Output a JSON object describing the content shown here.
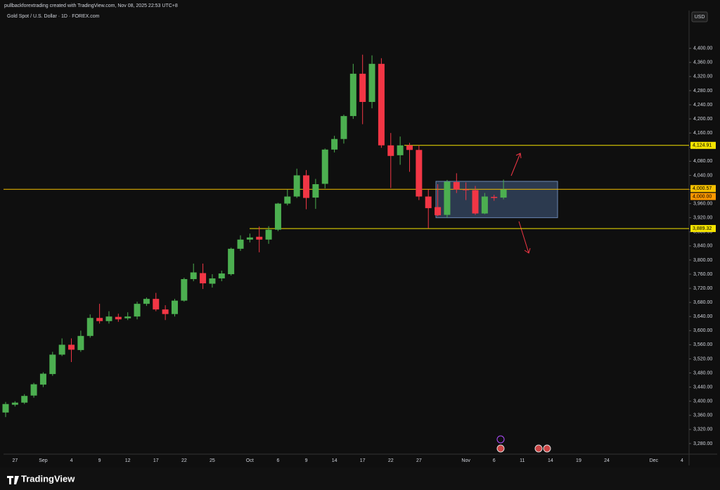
{
  "header": {
    "caption": "pullbackforextrading created with TradingView.com, Nov 08, 2025 22:53 UTC+8"
  },
  "footer": {
    "brand": "TradingView"
  },
  "chart_data": {
    "type": "candlestick",
    "title": "Gold Spot / U.S. Dollar · 1D · FOREX.com",
    "currency": "USD",
    "up_color": "#4caf50",
    "down_color": "#f23645",
    "categories": [
      null,
      "27",
      null,
      null,
      "Sep",
      null,
      null,
      "4",
      null,
      null,
      "9",
      null,
      null,
      "12",
      null,
      null,
      "17",
      null,
      null,
      "22",
      null,
      null,
      "25",
      null,
      null,
      null,
      "Oct",
      null,
      null,
      "6",
      null,
      null,
      "9",
      null,
      null,
      "14",
      null,
      null,
      "17",
      null,
      null,
      "22",
      null,
      null,
      "27",
      null,
      null,
      null,
      null,
      "Nov",
      null,
      null,
      "6",
      null,
      null,
      "11",
      null,
      null,
      "14",
      null,
      null,
      "19",
      null,
      null,
      "24",
      null,
      null,
      null,
      null,
      "Dec",
      null,
      null,
      "4"
    ],
    "open": [
      3368,
      3390,
      3396,
      3416,
      3447,
      3477,
      3532,
      3560,
      3545,
      3585,
      3636,
      3627,
      3639,
      3635,
      3640,
      3676,
      3690,
      3660,
      3647,
      3685,
      3746,
      3763,
      3733,
      3748,
      3760,
      3832,
      3858,
      3866,
      3858,
      3886,
      3960,
      3980,
      4040,
      3977,
      4016,
      4113,
      4143,
      4208,
      4328,
      4248,
      4356,
      4125,
      4097,
      4125,
      4112,
      3980,
      3950,
      3928,
      4021,
      4000,
      3998,
      3932,
      3979,
      3977,
      null,
      null,
      null,
      null,
      null,
      null,
      null,
      null,
      null,
      null,
      null,
      null,
      null,
      null,
      null,
      null,
      null,
      null,
      null
    ],
    "high": [
      3398,
      3400,
      3420,
      3452,
      3482,
      3540,
      3578,
      3578,
      3600,
      3646,
      3676,
      3655,
      3648,
      3652,
      3682,
      3694,
      3707,
      3672,
      3690,
      3750,
      3790,
      3790,
      3760,
      3770,
      3835,
      3870,
      3875,
      3895,
      3896,
      3962,
      4000,
      4059,
      4055,
      4030,
      4116,
      4152,
      4212,
      4356,
      4382,
      4380,
      4372,
      4160,
      4150,
      4132,
      4125,
      4000,
      4015,
      4027,
      4046,
      4020,
      4010,
      3990,
      3985,
      4028,
      null,
      null,
      null,
      null,
      null,
      null,
      null,
      null,
      null,
      null,
      null,
      null,
      null,
      null,
      null,
      null,
      null,
      null,
      null
    ],
    "low": [
      3355,
      3385,
      3392,
      3410,
      3440,
      3472,
      3528,
      3511,
      3540,
      3580,
      3620,
      3620,
      3625,
      3630,
      3632,
      3670,
      3655,
      3630,
      3640,
      3682,
      3740,
      3718,
      3722,
      3740,
      3756,
      3826,
      3850,
      3822,
      3846,
      3882,
      3955,
      3976,
      3944,
      3945,
      4003,
      4105,
      4130,
      4200,
      4185,
      4230,
      4118,
      4004,
      4070,
      4050,
      3970,
      3890,
      3924,
      3920,
      3990,
      3970,
      3928,
      3930,
      3968,
      3972,
      null,
      null,
      null,
      null,
      null,
      null,
      null,
      null,
      null,
      null,
      null,
      null,
      null,
      null,
      null,
      null,
      null,
      null,
      null
    ],
    "close": [
      3392,
      3396,
      3415,
      3448,
      3478,
      3532,
      3560,
      3546,
      3585,
      3636,
      3627,
      3640,
      3632,
      3640,
      3676,
      3690,
      3660,
      3647,
      3685,
      3746,
      3765,
      3734,
      3748,
      3762,
      3832,
      3858,
      3864,
      3858,
      3886,
      3960,
      3980,
      4040,
      3976,
      4015,
      4113,
      4143,
      4208,
      4328,
      4248,
      4356,
      4125,
      4095,
      4125,
      4112,
      3980,
      3947,
      3927,
      4022,
      4000,
      3998,
      3932,
      3980,
      3976,
      4000,
      null,
      null,
      null,
      null,
      null,
      null,
      null,
      null,
      null,
      null,
      null,
      null,
      null,
      null,
      null,
      null,
      null,
      null,
      null
    ],
    "ylim": [
      3252,
      4507
    ],
    "yticks": [
      {
        "value": 3280,
        "label": "3,280.00"
      },
      {
        "value": 3320,
        "label": "3,320.00"
      },
      {
        "value": 3360,
        "label": "3,360.00"
      },
      {
        "value": 3400,
        "label": "3,400.00"
      },
      {
        "value": 3440,
        "label": "3,440.00"
      },
      {
        "value": 3480,
        "label": "3,480.00"
      },
      {
        "value": 3520,
        "label": "3,520.00"
      },
      {
        "value": 3560,
        "label": "3,560.00"
      },
      {
        "value": 3600,
        "label": "3,600.00"
      },
      {
        "value": 3640,
        "label": "3,640.00"
      },
      {
        "value": 3680,
        "label": "3,680.00"
      },
      {
        "value": 3720,
        "label": "3,720.00"
      },
      {
        "value": 3760,
        "label": "3,760.00"
      },
      {
        "value": 3800,
        "label": "3,800.00"
      },
      {
        "value": 3840,
        "label": "3,840.00"
      },
      {
        "value": 3880,
        "label": "3,880.00"
      },
      {
        "value": 3920,
        "label": "3,920.00"
      },
      {
        "value": 3960,
        "label": "3,960.00"
      },
      {
        "value": 4000,
        "label": "4,000.00"
      },
      {
        "value": 4040,
        "label": "4,040.00"
      },
      {
        "value": 4080,
        "label": "4,080.00"
      },
      {
        "value": 4120,
        "label": "4,120.00"
      },
      {
        "value": 4160,
        "label": "4,160.00"
      },
      {
        "value": 4200,
        "label": "4,200.00"
      },
      {
        "value": 4240,
        "label": "4,240.00"
      },
      {
        "value": 4280,
        "label": "4,280.00"
      },
      {
        "value": 4320,
        "label": "4,320.00"
      },
      {
        "value": 4360,
        "label": "4,360.00"
      },
      {
        "value": 4400,
        "label": "4,400.00"
      }
    ],
    "levels": [
      {
        "value": 4124.91,
        "label": "4,124.91",
        "color": "#f5e400"
      },
      {
        "value": 4000.57,
        "label": "4,000.57",
        "color": "#f5c000"
      },
      {
        "value": 3889.32,
        "label": "3,889.32",
        "color": "#f5e400"
      }
    ],
    "last_price": {
      "value": 4000,
      "label": "4,000.00",
      "color": "#ff9800"
    },
    "zone": {
      "low": 3920,
      "high": 4023
    }
  }
}
